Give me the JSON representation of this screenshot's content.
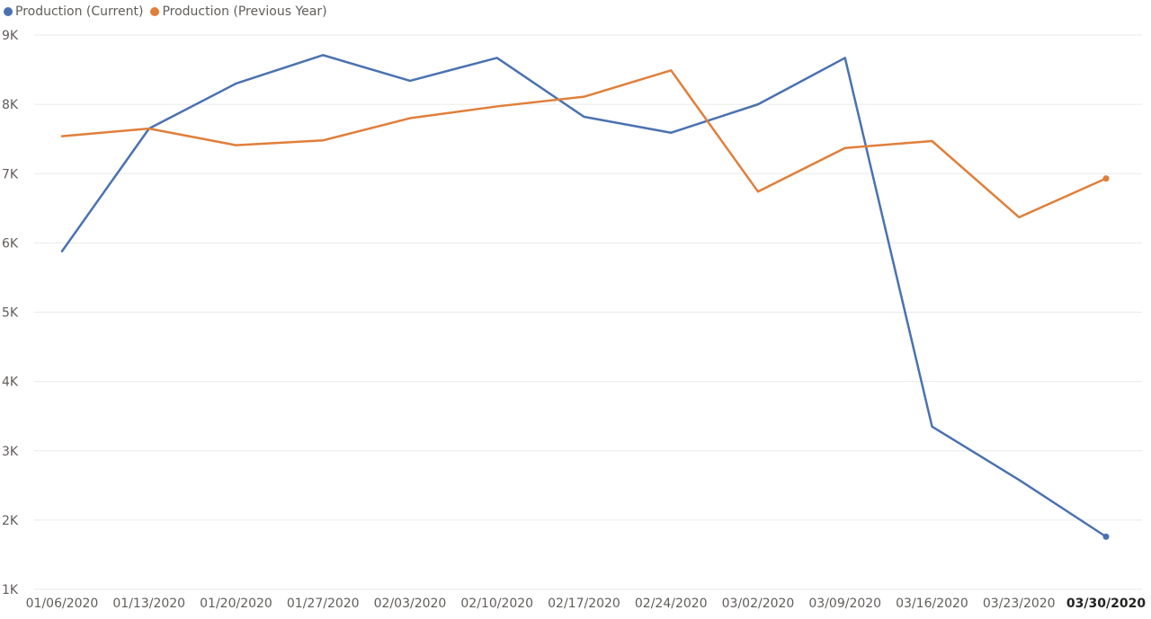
{
  "chart_data": {
    "type": "line",
    "title": "",
    "xlabel": "",
    "ylabel": "",
    "categories": [
      "01/06/2020",
      "01/13/2020",
      "01/20/2020",
      "01/27/2020",
      "02/03/2020",
      "02/10/2020",
      "02/17/2020",
      "02/24/2020",
      "03/02/2020",
      "03/09/2020",
      "03/16/2020",
      "03/23/2020",
      "03/30/2020"
    ],
    "highlighted_category": "03/30/2020",
    "ylim": [
      1000,
      9000
    ],
    "yticks": [
      1000,
      2000,
      3000,
      4000,
      5000,
      6000,
      7000,
      8000,
      9000
    ],
    "ytick_labels": [
      "1K",
      "2K",
      "3K",
      "4K",
      "5K",
      "6K",
      "7K",
      "8K",
      "9K"
    ],
    "grid": true,
    "legend_position": "top-left",
    "series": [
      {
        "name": "Production (Current)",
        "color": "#4a72b0",
        "values": [
          5880,
          7650,
          8300,
          8710,
          8340,
          8670,
          7820,
          7590,
          8000,
          8670,
          3350,
          2580,
          1760
        ]
      },
      {
        "name": "Production (Previous Year)",
        "color": "#e07f3a",
        "values": [
          7540,
          7650,
          7410,
          7480,
          7800,
          7970,
          8110,
          8490,
          6740,
          7370,
          7470,
          6370,
          6930
        ]
      }
    ]
  }
}
